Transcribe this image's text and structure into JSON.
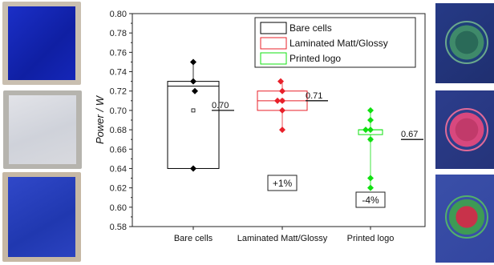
{
  "chart_data": {
    "type": "box",
    "ylabel": "Power / W",
    "ylim": [
      0.58,
      0.8
    ],
    "yticks": [
      "0.58",
      "0.60",
      "0.62",
      "0.64",
      "0.66",
      "0.68",
      "0.70",
      "0.72",
      "0.74",
      "0.76",
      "0.78",
      "0.80"
    ],
    "categories": [
      "Bare cells",
      "Laminated Matt/Glossy",
      "Printed logo"
    ],
    "legend_position": "top-right",
    "series": [
      {
        "name": "Bare cells",
        "color": "#000000",
        "box": {
          "q1": 0.64,
          "median": 0.725,
          "q3": 0.73,
          "mean": 0.7
        },
        "points": [
          0.75,
          0.73,
          0.72,
          0.64
        ],
        "mean_label": "0.70",
        "change_label": ""
      },
      {
        "name": "Laminated Matt/Glossy",
        "color": "#e8202a",
        "box": {
          "q1": 0.7,
          "median": 0.71,
          "q3": 0.72,
          "mean": 0.71
        },
        "points": [
          0.73,
          0.72,
          0.71,
          0.71,
          0.7,
          0.68
        ],
        "mean_label": "0.71",
        "change_label": "+1%"
      },
      {
        "name": "Printed logo",
        "color": "#10e010",
        "box": {
          "q1": 0.675,
          "median": 0.68,
          "q3": 0.68,
          "mean": 0.67
        },
        "points": [
          0.7,
          0.69,
          0.68,
          0.68,
          0.67,
          0.63,
          0.62
        ],
        "mean_label": "0.67",
        "change_label": "-4%"
      }
    ]
  }
}
